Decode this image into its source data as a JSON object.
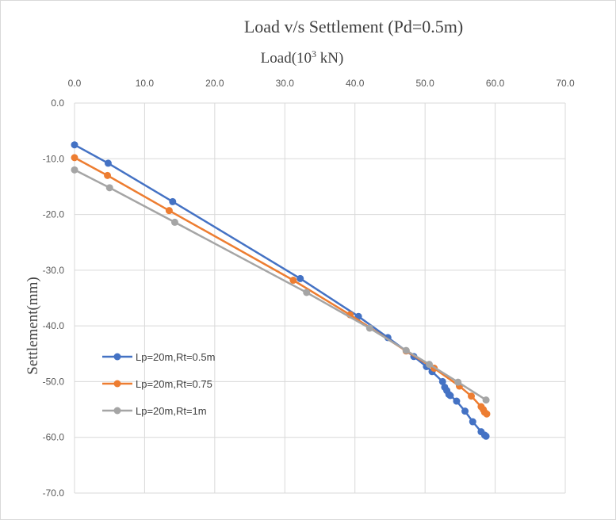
{
  "chart_data": {
    "type": "line",
    "title": "Load v/s Settlement (Pd=0.5m)",
    "xlabel_prefix": "Load(10",
    "xlabel_sup": "3",
    "xlabel_suffix": " kN)",
    "ylabel": "Settlement(mm)",
    "xlim": [
      0,
      70
    ],
    "ylim": [
      -70,
      0
    ],
    "x_ticks": [
      "0.0",
      "10.0",
      "20.0",
      "30.0",
      "40.0",
      "50.0",
      "60.0",
      "70.0"
    ],
    "y_ticks": [
      "0.0",
      "-10.0",
      "-20.0",
      "-30.0",
      "-40.0",
      "-50.0",
      "-60.0",
      "-70.0"
    ],
    "x_axis_position": "top",
    "grid": true,
    "legend_position": "lower-left",
    "series": [
      {
        "name": "Lp=20m,Rt=0.5m",
        "color": "#4472c4",
        "points": [
          [
            0,
            -7.5
          ],
          [
            4.8,
            -10.8
          ],
          [
            14.0,
            -17.7
          ],
          [
            32.2,
            -31.5
          ],
          [
            40.5,
            -38.3
          ],
          [
            44.7,
            -42.1
          ],
          [
            48.4,
            -45.5
          ],
          [
            50.2,
            -47.3
          ],
          [
            51.0,
            -48.2
          ],
          [
            52.5,
            -50.0
          ],
          [
            52.8,
            -51.0
          ],
          [
            53.1,
            -51.6
          ],
          [
            53.4,
            -52.3
          ],
          [
            53.6,
            -52.5
          ],
          [
            54.5,
            -53.5
          ],
          [
            55.7,
            -55.3
          ],
          [
            56.8,
            -57.2
          ],
          [
            58.0,
            -59.0
          ],
          [
            58.5,
            -59.6
          ],
          [
            58.7,
            -59.8
          ]
        ]
      },
      {
        "name": "Lp=20m,Rt=0.75",
        "color": "#ed7d31",
        "points": [
          [
            0,
            -9.8
          ],
          [
            4.7,
            -13.0
          ],
          [
            13.5,
            -19.3
          ],
          [
            31.2,
            -31.8
          ],
          [
            39.3,
            -38.0
          ],
          [
            47.3,
            -44.5
          ],
          [
            51.3,
            -47.6
          ],
          [
            54.9,
            -50.8
          ],
          [
            56.6,
            -52.6
          ],
          [
            58.0,
            -54.5
          ],
          [
            58.3,
            -55.0
          ],
          [
            58.5,
            -55.5
          ],
          [
            58.8,
            -55.8
          ]
        ]
      },
      {
        "name": "Lp=20m,Rt=1m",
        "color": "#a5a5a5",
        "points": [
          [
            0,
            -12.0
          ],
          [
            5.0,
            -15.2
          ],
          [
            14.3,
            -21.4
          ],
          [
            33.1,
            -34.0
          ],
          [
            42.1,
            -40.4
          ],
          [
            47.3,
            -44.4
          ],
          [
            50.6,
            -46.9
          ],
          [
            54.7,
            -50.1
          ],
          [
            58.7,
            -53.3
          ]
        ]
      }
    ]
  }
}
